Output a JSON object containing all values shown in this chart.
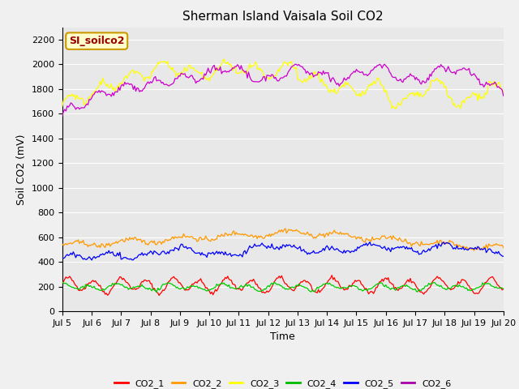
{
  "title": "Sherman Island Vaisala Soil CO2",
  "xlabel": "Time",
  "ylabel": "Soil CO2 (mV)",
  "watermark": "SI_soilco2",
  "ylim": [
    0,
    2300
  ],
  "yticks": [
    0,
    200,
    400,
    600,
    800,
    1000,
    1200,
    1400,
    1600,
    1800,
    2000,
    2200
  ],
  "xtick_labels": [
    "Jul 5",
    "Jul 6",
    "Jul 7",
    "Jul 8",
    "Jul 9",
    "Jul 10",
    "Jul 11",
    "Jul 12",
    "Jul 13",
    "Jul 14",
    "Jul 15",
    "Jul 16",
    "Jul 17",
    "Jul 18",
    "Jul 19",
    "Jul 20"
  ],
  "n_points": 361,
  "series_colors": {
    "CO2_1": "#ff0000",
    "CO2_2": "#ff9900",
    "CO2_3": "#ffff00",
    "CO2_4": "#00cc00",
    "CO2_5": "#0000ff",
    "CO2_6": "#cc00cc"
  },
  "legend_colors": [
    "#ff0000",
    "#ff9900",
    "#ffff00",
    "#00bb00",
    "#0000ff",
    "#aa00aa"
  ],
  "legend_labels": [
    "CO2_1",
    "CO2_2",
    "CO2_3",
    "CO2_4",
    "CO2_5",
    "CO2_6"
  ],
  "bg_color": "#e8e8e8",
  "watermark_bg": "#ffffcc",
  "watermark_border": "#cc9900",
  "watermark_text_color": "#990000",
  "grid_color": "#ffffff",
  "title_fontsize": 11,
  "axis_label_fontsize": 9,
  "tick_fontsize": 8,
  "figwidth": 6.4,
  "figheight": 4.8,
  "dpi": 100
}
